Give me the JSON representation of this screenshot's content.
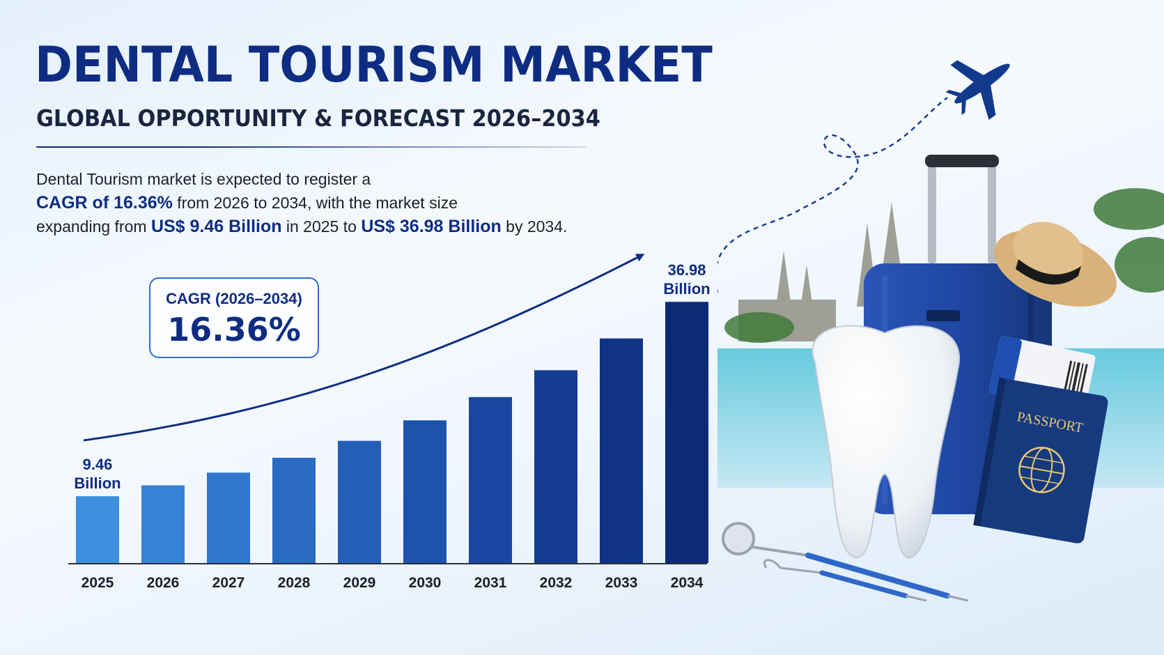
{
  "header": {
    "title": "DENTAL TOURISM MARKET",
    "subtitle": "GLOBAL OPPORTUNITY & FORECAST 2026–2034"
  },
  "description": {
    "line1": "Dental Tourism market is expected to register a",
    "cagr_phrase": "CAGR of 16.36%",
    "line2_rest": " from 2026 to 2034, with the market size",
    "line3_start": "expanding from ",
    "start_value": "US$ 9.46 Billion",
    "line3_mid": " in 2025 to ",
    "end_value": "US$ 36.98 Billion",
    "line3_end": " by 2034."
  },
  "cagr_box": {
    "label": "CAGR (2026–2034)",
    "value": "16.36%"
  },
  "chart_data": {
    "type": "bar",
    "categories": [
      "2025",
      "2026",
      "2027",
      "2028",
      "2029",
      "2030",
      "2031",
      "2032",
      "2033",
      "2034"
    ],
    "values": [
      9.46,
      11.0,
      12.8,
      14.9,
      17.3,
      20.2,
      23.5,
      27.3,
      31.8,
      36.98
    ],
    "first_label": [
      "9.46",
      "Billion"
    ],
    "last_label": [
      "36.98",
      "Billion"
    ],
    "title": "",
    "xlabel": "",
    "ylabel": "",
    "grid": false,
    "bar_colors": [
      "#3d8fdd",
      "#3683d6",
      "#2f77cd",
      "#2a6bc3",
      "#245fb8",
      "#1e53ac",
      "#19479f",
      "#143c91",
      "#113384",
      "#0e2a77"
    ],
    "trend_arrow_color": "#0e2d82",
    "trend_arrow": true
  },
  "illustration": {
    "passport_text": "PASSPORT",
    "icons": [
      "airplane-icon",
      "suitcase-icon",
      "tooth-icon",
      "passport-icon",
      "hat-icon",
      "dental-mirror-icon",
      "dental-probe-icon"
    ]
  }
}
